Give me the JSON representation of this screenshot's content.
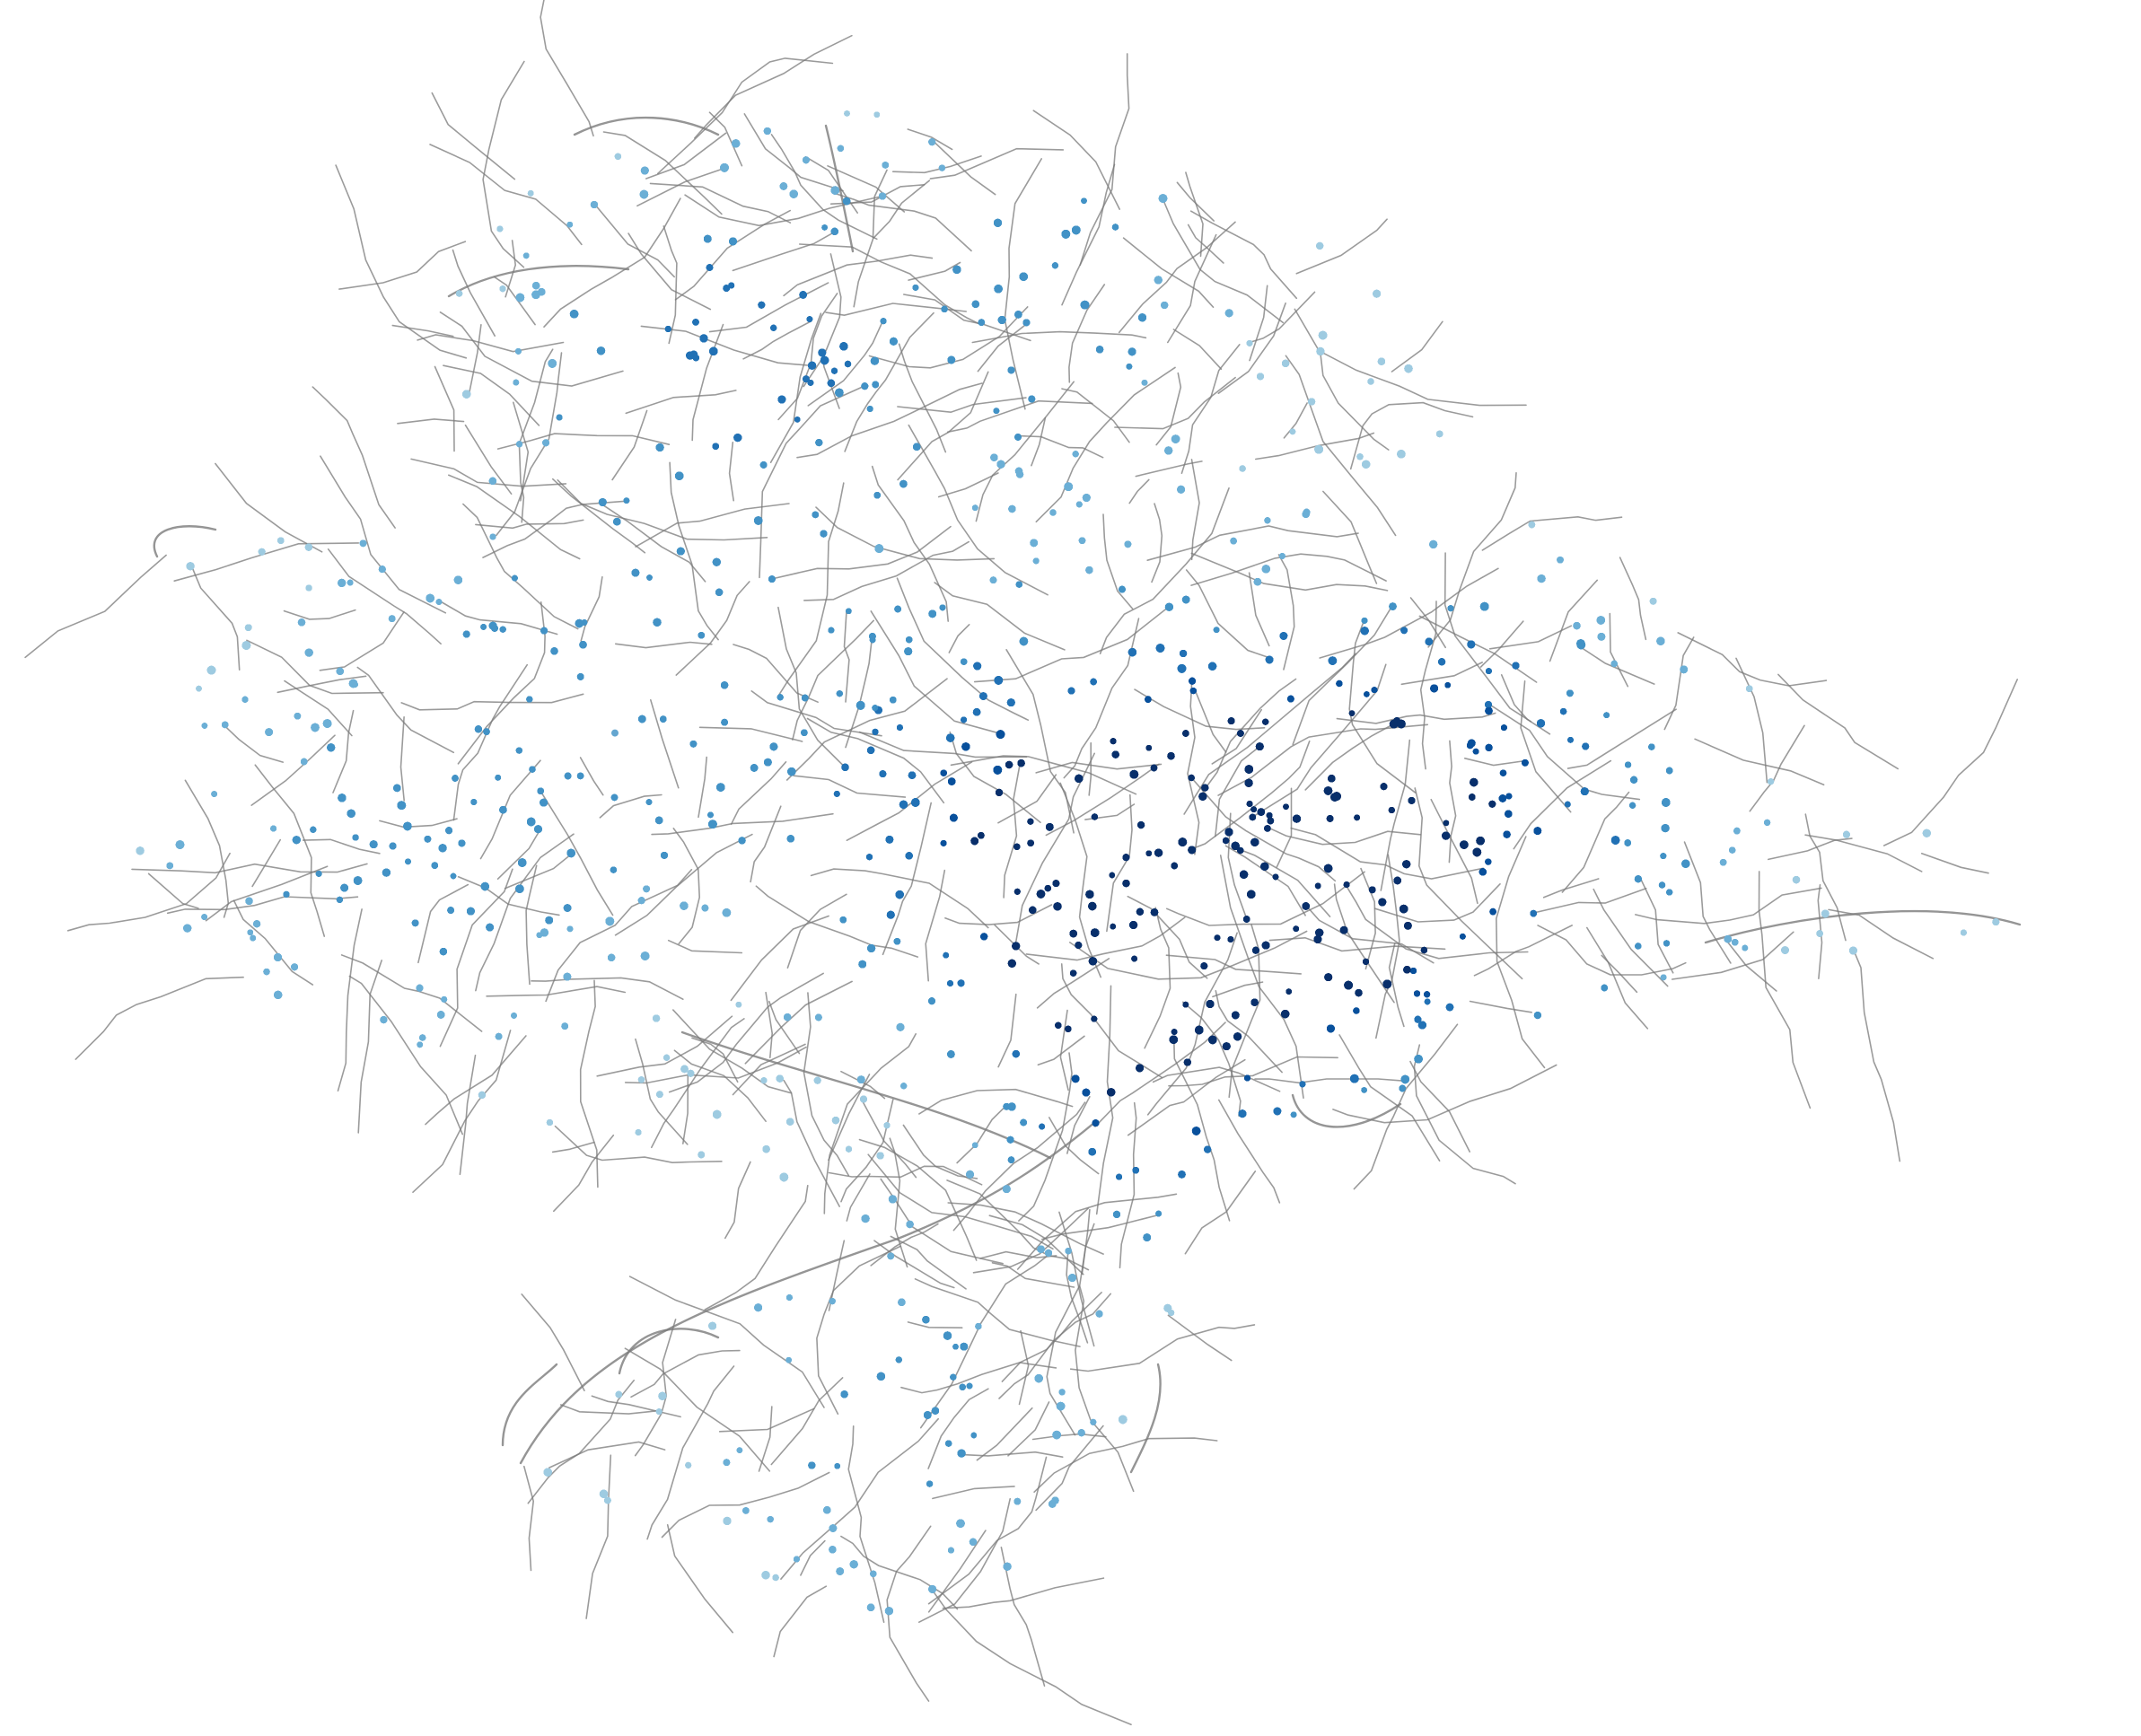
{
  "map": {
    "style": {
      "background": "#ffffff",
      "street_color": "#7a7a7a",
      "node_colors": [
        "#9ecae1",
        "#6baed6",
        "#4292c6",
        "#2171b5",
        "#08519c",
        "#08306b"
      ]
    },
    "street_network": {
      "rendered": true,
      "color": "#7a7a7a"
    },
    "node_points": {
      "rendered": true,
      "color_scale": "blues",
      "density_peak": "center"
    }
  }
}
